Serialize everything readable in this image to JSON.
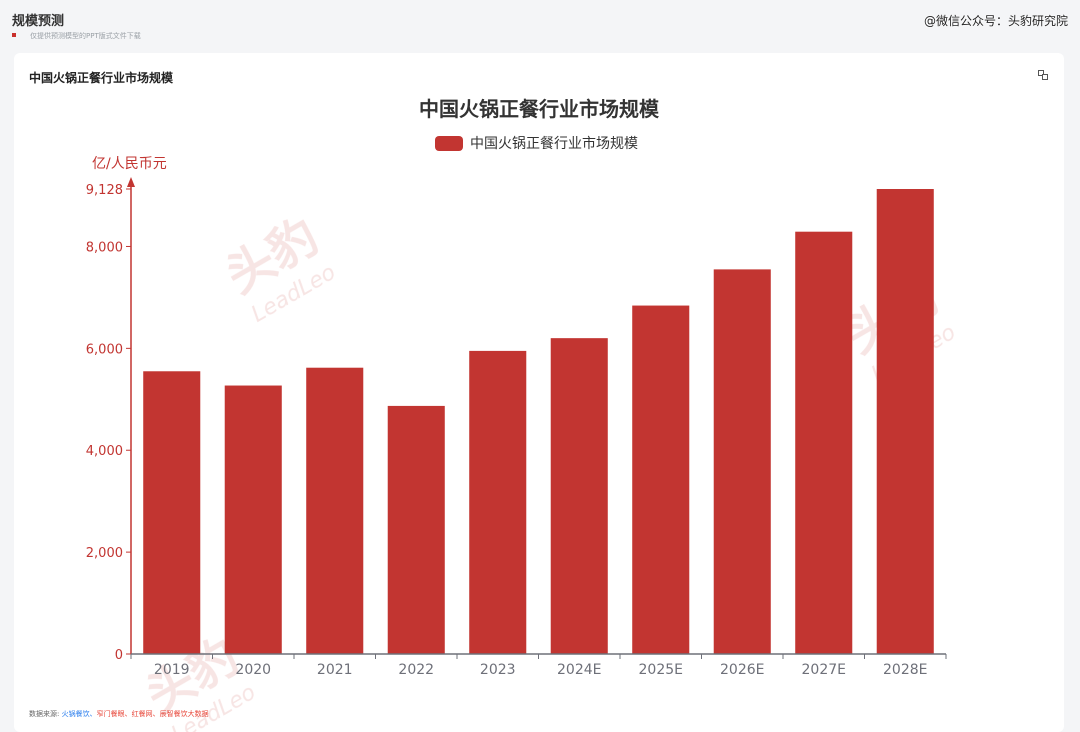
{
  "page": {
    "title": "规模预测",
    "subtitle": "仅提供预测模型的PPT版式文件下载",
    "wechat_label": "@微信公众号：头豹研究院"
  },
  "card": {
    "title": "中国火锅正餐行业市场规模"
  },
  "source": {
    "label": "数据来源:",
    "items": [
      "火锅餐饮、",
      "窄门餐眼、",
      "红餐网、",
      "辰智餐饮大数据"
    ]
  },
  "watermark": {
    "text_cn": "头豹",
    "text_en": "LeadLeo"
  },
  "colors": {
    "bar": "#c23531",
    "axis": "#c23531",
    "category_axis": "#6e7079"
  },
  "chart_data": {
    "type": "bar",
    "title": "中国火锅正餐行业市场规模",
    "legend": "中国火锅正餐行业市场规模",
    "legend_position": "top-center",
    "ylabel": "亿/人民币元",
    "ylim": [
      0,
      9128
    ],
    "yticks": [
      "0",
      "2,000",
      "4,000",
      "6,000",
      "8,000",
      "9,128"
    ],
    "grid": false,
    "categories": [
      "2019",
      "2020",
      "2021",
      "2022",
      "2023",
      "2024E",
      "2025E",
      "2026E",
      "2027E",
      "2028E"
    ],
    "series": [
      {
        "name": "中国火锅正餐行业市场规模",
        "values": [
          5550,
          5270,
          5620,
          4870,
          5950,
          6200,
          6840,
          7550,
          8290,
          9128
        ]
      }
    ]
  }
}
